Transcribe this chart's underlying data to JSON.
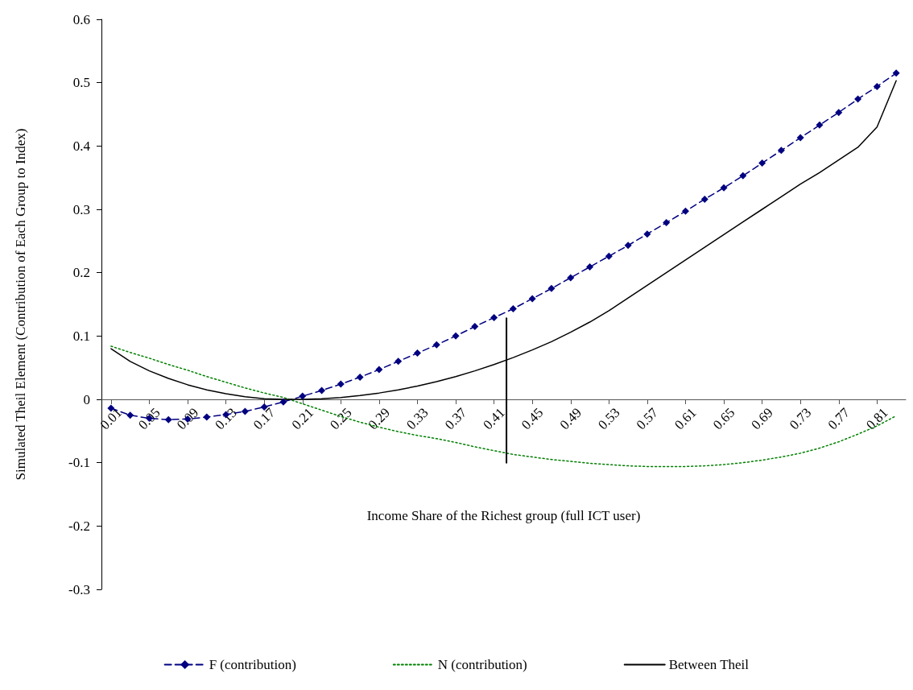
{
  "chart_data": {
    "type": "line",
    "xlabel": "Income Share of the Richest group (full ICT user)",
    "ylabel": "Simulated Theil Element (Contribution of Each Group to Index)",
    "x": [
      0.01,
      0.03,
      0.05,
      0.07,
      0.09,
      0.11,
      0.13,
      0.15,
      0.17,
      0.19,
      0.21,
      0.23,
      0.25,
      0.27,
      0.29,
      0.31,
      0.33,
      0.35,
      0.37,
      0.39,
      0.41,
      0.43,
      0.45,
      0.47,
      0.49,
      0.51,
      0.53,
      0.55,
      0.57,
      0.59,
      0.61,
      0.63,
      0.65,
      0.67,
      0.69,
      0.71,
      0.73,
      0.75,
      0.77,
      0.79,
      0.81,
      0.83
    ],
    "xlim": [
      0,
      0.84
    ],
    "xticks": [
      0.01,
      0.05,
      0.09,
      0.13,
      0.17,
      0.21,
      0.25,
      0.29,
      0.33,
      0.37,
      0.41,
      0.45,
      0.49,
      0.53,
      0.57,
      0.61,
      0.65,
      0.69,
      0.73,
      0.77,
      0.81
    ],
    "ylim": [
      -0.3,
      0.6
    ],
    "yticks": [
      -0.3,
      -0.2,
      -0.1,
      0,
      0.1,
      0.2,
      0.3,
      0.4,
      0.5,
      0.6
    ],
    "grid": false,
    "legend": "bottom",
    "series": [
      {
        "name": "F (contribution)",
        "color": "#000080",
        "marker": "diamond",
        "line_style": "dashed",
        "values": [
          -0.014,
          -0.025,
          -0.03,
          -0.032,
          -0.031,
          -0.028,
          -0.024,
          -0.019,
          -0.012,
          -0.004,
          0.005,
          0.014,
          0.024,
          0.035,
          0.047,
          0.06,
          0.073,
          0.086,
          0.1,
          0.115,
          0.129,
          0.143,
          0.159,
          0.175,
          0.192,
          0.209,
          0.226,
          0.243,
          0.261,
          0.279,
          0.297,
          0.316,
          0.334,
          0.353,
          0.373,
          0.393,
          0.413,
          0.433,
          0.453,
          0.474,
          0.494,
          0.515
        ]
      },
      {
        "name": "N (contribution)",
        "color": "#008000",
        "marker": "none",
        "line_style": "dotted",
        "values": [
          0.084,
          0.074,
          0.065,
          0.055,
          0.046,
          0.036,
          0.027,
          0.018,
          0.01,
          0.003,
          -0.007,
          -0.017,
          -0.027,
          -0.036,
          -0.044,
          -0.051,
          -0.057,
          -0.062,
          -0.068,
          -0.075,
          -0.081,
          -0.087,
          -0.091,
          -0.095,
          -0.098,
          -0.101,
          -0.103,
          -0.105,
          -0.106,
          -0.106,
          -0.106,
          -0.105,
          -0.103,
          -0.1,
          -0.096,
          -0.091,
          -0.085,
          -0.077,
          -0.067,
          -0.055,
          -0.042,
          -0.026
        ]
      },
      {
        "name": "Between Theil",
        "color": "#000000",
        "marker": "none",
        "line_style": "solid",
        "values": [
          0.08,
          0.06,
          0.045,
          0.033,
          0.023,
          0.015,
          0.009,
          0.004,
          0.001,
          0,
          0,
          0.001,
          0.003,
          0.006,
          0.01,
          0.015,
          0.021,
          0.028,
          0.036,
          0.045,
          0.055,
          0.066,
          0.078,
          0.091,
          0.106,
          0.122,
          0.14,
          0.16,
          0.18,
          0.2,
          0.22,
          0.24,
          0.26,
          0.28,
          0.3,
          0.32,
          0.34,
          0.358,
          0.378,
          0.398,
          0.43,
          0.503
        ]
      },
      {
        "color": "#000000",
        "marker": "none",
        "line_style": "solid",
        "x": [
          0.423,
          0.423
        ],
        "values": [
          0.128,
          -0.1
        ]
      }
    ]
  }
}
